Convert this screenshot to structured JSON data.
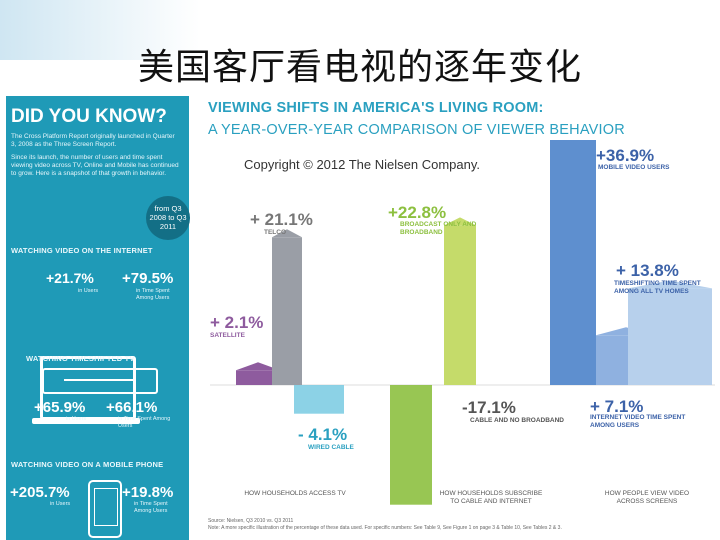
{
  "slide_title": "美国客厅看电视的逐年变化",
  "panel": {
    "heading": "DID YOU KNOW?",
    "intro_1": "The Cross Platform Report originally launched in Quarter 3, 2008 as the Three Screen Report.",
    "intro_2": "Since its launch, the number of users and time spent viewing video across TV, Online and Mobile has continued to grow. Here is a snapshot of that growth in behavior.",
    "badge": "from Q3 2008 to Q3 2011",
    "sections": [
      {
        "title": "WATCHING VIDEO ON THE INTERNET",
        "v1": "+21.7%",
        "l1": "in Users",
        "v2": "+79.5%",
        "l2": "in Time Spent Among Users"
      },
      {
        "title": "WATCHING TIMESHIFTED TV",
        "v1": "+65.9%",
        "l1": "in Users",
        "v2": "+66.1%",
        "l2": "in Time Spent Among Users"
      },
      {
        "title": "WATCHING VIDEO ON A MOBILE PHONE",
        "v1": "+205.7%",
        "l1": "in Users",
        "v2": "+19.8%",
        "l2": "in Time Spent Among Users"
      }
    ]
  },
  "chart_data": {
    "type": "bar",
    "title": "VIEWING SHIFTS IN AMERICA'S LIVING ROOM:",
    "subtitle": "A YEAR-OVER-YEAR COMPARISON OF VIEWER BEHAVIOR",
    "copyright": "Copyright © 2012 The Nielsen Company.",
    "groups": [
      {
        "label": "HOW HOUSEHOLDS ACCESS TV",
        "series": [
          {
            "label": "+ 2.1%",
            "caption": "SATELLITE",
            "value": 2.1,
            "color": "#8e5b9e"
          },
          {
            "label": "+ 21.1%",
            "caption": "TELCO",
            "value": 21.1,
            "color": "#9a9ea6"
          },
          {
            "label": "- 4.1%",
            "caption": "WIRED CABLE",
            "value": -4.1,
            "color": "#7fcde3"
          }
        ]
      },
      {
        "label": "HOW HOUSEHOLDS SUBSCRIBE TO CABLE AND INTERNET",
        "series": [
          {
            "label": "-17.1%",
            "caption": "CABLE AND NO BROADBAND",
            "value": -17.1,
            "color": "#8dc040"
          },
          {
            "label": "+22.8%",
            "caption": "BROADCAST ONLY AND BROADBAND",
            "value": 22.8,
            "color": "#c5db6a"
          }
        ]
      },
      {
        "label": "HOW PEOPLE VIEW VIDEO ACROSS SCREENS",
        "series": [
          {
            "label": "+36.9%",
            "caption": "MOBILE VIDEO USERS",
            "value": 36.9,
            "color": "#5e8fcf"
          },
          {
            "label": "+ 7.1%",
            "caption": "INTERNET VIDEO TIME SPENT AMONG USERS",
            "value": 7.1,
            "color": "#8fb1e0"
          },
          {
            "label": "+ 13.8%",
            "caption": "TIMESHIFTING TIME SPENT AMONG ALL TV HOMES",
            "value": 13.8,
            "color": "#b7d0ec"
          }
        ]
      }
    ],
    "source": "Source: Nielsen, Q3 2010 vs. Q3 2011",
    "note": "Note: A more specific illustration of the percentage of these data used. For specific numbers: See Table 9, See Figure 1 on page 3 & Table 10, See Tables 2 & 3."
  },
  "colors": {
    "panel": "#1f9ab7",
    "heading": "#2aa0c0"
  }
}
